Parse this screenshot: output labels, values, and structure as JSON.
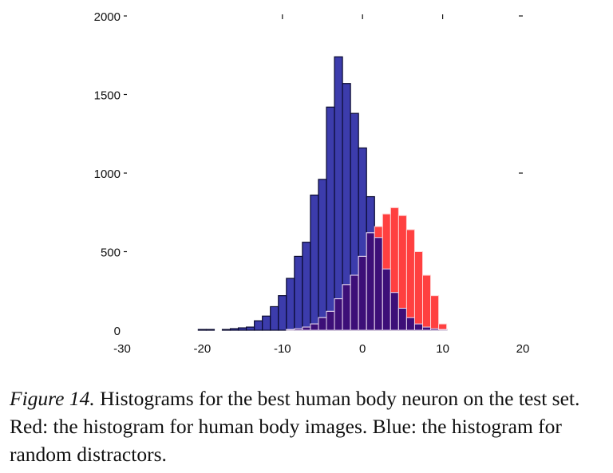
{
  "chart_data": {
    "type": "bar",
    "title": "",
    "xlabel": "",
    "ylabel": "",
    "xlim": [
      -30,
      20
    ],
    "ylim": [
      0,
      2000
    ],
    "x_ticks": [
      "-30",
      "-20",
      "-10",
      "0",
      "10",
      "20"
    ],
    "y_ticks": [
      "0",
      "500",
      "1000",
      "1500",
      "2000"
    ],
    "grid": false,
    "legend": null,
    "bin_width": 1,
    "series": [
      {
        "name": "random distractors",
        "color": "#3c3cac",
        "x": [
          -20,
          -19,
          -17,
          -16,
          -15,
          -14,
          -13,
          -12,
          -11,
          -10,
          -9,
          -8,
          -7,
          -6,
          -5,
          -4,
          -3,
          -2,
          -1,
          0,
          1,
          2,
          3,
          4,
          5,
          6,
          7,
          8,
          9,
          10
        ],
        "values": [
          5,
          5,
          5,
          10,
          15,
          20,
          60,
          90,
          150,
          220,
          330,
          470,
          560,
          860,
          960,
          1420,
          1740,
          1570,
          1380,
          1160,
          850,
          590,
          390,
          240,
          140,
          80,
          40,
          20,
          10,
          5
        ]
      },
      {
        "name": "human body images",
        "color": "#ff4040",
        "x": [
          -9,
          -8,
          -7,
          -6,
          -5,
          -4,
          -3,
          -2,
          -1,
          0,
          1,
          2,
          3,
          4,
          5,
          6,
          7,
          8,
          9,
          10
        ],
        "values": [
          5,
          10,
          20,
          40,
          80,
          120,
          200,
          290,
          350,
          470,
          620,
          660,
          740,
          780,
          730,
          640,
          500,
          350,
          220,
          40
        ]
      }
    ],
    "overlap_color": "#3d0f78"
  },
  "axes": {
    "y_ticks": [
      "0",
      "500",
      "1000",
      "1500",
      "2000"
    ],
    "x_ticks": [
      "-30",
      "-20",
      "-10",
      "0",
      "10",
      "20"
    ]
  },
  "caption": {
    "figure_label": "Figure 14.",
    "text": " Histograms for the best human body neuron on the test set.  Red: the histogram for human body images. Blue: the histogram for random distractors."
  }
}
